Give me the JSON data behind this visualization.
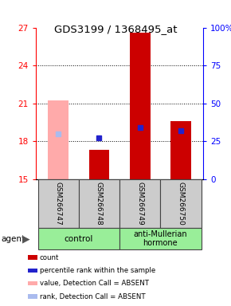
{
  "title": "GDS3199 / 1368495_at",
  "samples": [
    "GSM266747",
    "GSM266748",
    "GSM266749",
    "GSM266750"
  ],
  "ylim": [
    15,
    27
  ],
  "ylim_right": [
    0,
    100
  ],
  "yticks_left": [
    15,
    18,
    21,
    24,
    27
  ],
  "yticks_right": [
    0,
    25,
    50,
    75,
    100
  ],
  "ytick_right_labels": [
    "0",
    "25",
    "50",
    "75",
    "100%"
  ],
  "grid_lines": [
    18,
    21,
    24
  ],
  "red_bars": [
    null,
    17.3,
    26.6,
    19.6
  ],
  "blue_squares": [
    null,
    18.25,
    19.1,
    18.85
  ],
  "pink_bars": [
    21.2,
    null,
    null,
    null
  ],
  "lightblue_squares": [
    18.55,
    null,
    null,
    null
  ],
  "bar_width": 0.5,
  "bar_color_red": "#cc0000",
  "bar_color_pink": "#ffaaaa",
  "square_color_blue": "#2222cc",
  "square_color_lightblue": "#aabbee",
  "group_assignments": [
    0,
    0,
    1,
    1
  ],
  "group_labels": [
    "control",
    "anti-Mullerian\nhormone"
  ],
  "group_color": "#99ee99",
  "sample_box_color": "#cccccc",
  "legend_items": [
    {
      "label": "count",
      "color": "#cc0000"
    },
    {
      "label": "percentile rank within the sample",
      "color": "#2222cc"
    },
    {
      "label": "value, Detection Call = ABSENT",
      "color": "#ffaaaa"
    },
    {
      "label": "rank, Detection Call = ABSENT",
      "color": "#aabbee"
    }
  ]
}
